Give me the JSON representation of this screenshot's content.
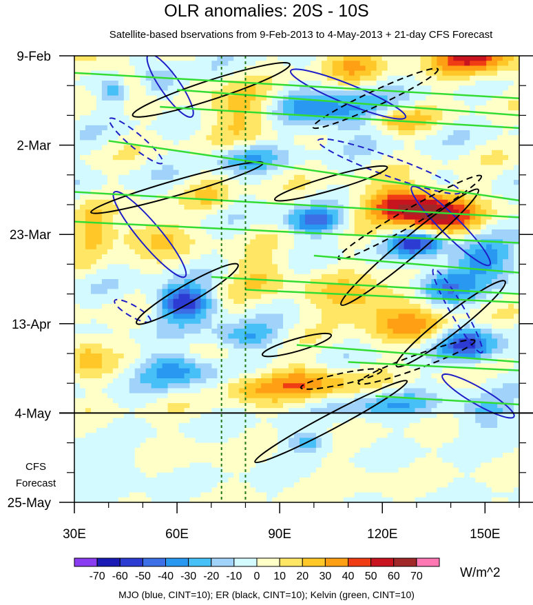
{
  "chart_data": {
    "type": "heatmap",
    "title": "OLR anomalies: 20S - 10S",
    "subtitle": "Satellite-based bservations from 9-Feb-2013 to 4-May-2013 + 21-day CFS Forecast",
    "x": {
      "ticks": [
        "30E",
        "60E",
        "90E",
        "120E",
        "150E"
      ],
      "tick_values": [
        30,
        60,
        90,
        120,
        150
      ],
      "range": [
        30,
        160
      ]
    },
    "y": {
      "ticks": [
        "9-Feb",
        "2-Mar",
        "23-Mar",
        "13-Apr",
        "4-May",
        "25-May"
      ],
      "range": [
        "9-Feb-2013",
        "25-May-2013"
      ],
      "reversed": true
    },
    "colorbar": {
      "levels": [
        "-70",
        "-60",
        "-50",
        "-40",
        "-30",
        "-20",
        "-10",
        "0",
        "10",
        "20",
        "30",
        "40",
        "50",
        "60",
        "70"
      ],
      "colors": [
        "#8a3cf0",
        "#1a1ab4",
        "#2c3cd2",
        "#3c6ee6",
        "#2898f0",
        "#46c0f6",
        "#a0d2fa",
        "#d2faff",
        "#ffffc8",
        "#ffe664",
        "#ffc828",
        "#ffa014",
        "#f03c14",
        "#c8141e",
        "#a02828",
        "#ff78b4"
      ],
      "unit": "W/m^2"
    },
    "reference_lines": {
      "forecast_start": "4-May",
      "longitudes": [
        73,
        80
      ]
    },
    "forecast_label": [
      "CFS",
      "Forecast"
    ],
    "overlays": [
      {
        "name": "MJO",
        "color": "#1e1ec8"
      },
      {
        "name": "ER",
        "color": "#000000"
      },
      {
        "name": "Kelvin",
        "color": "#32dc32"
      }
    ]
  },
  "footer": "MJO (blue, CINT=10); ER (black, CINT=10); Kelvin (green, CINT=10)"
}
